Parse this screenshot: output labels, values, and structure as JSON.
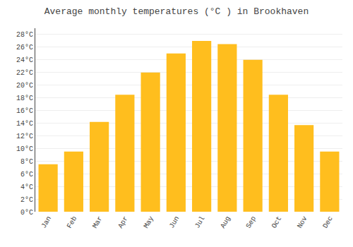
{
  "chart_data": {
    "type": "bar",
    "title": "Average monthly temperatures (°C ) in Brookhaven",
    "categories": [
      "Jan",
      "Feb",
      "Mar",
      "Apr",
      "May",
      "Jun",
      "Jul",
      "Aug",
      "Sep",
      "Oct",
      "Nov",
      "Dec"
    ],
    "values": [
      7.5,
      9.5,
      14.2,
      18.5,
      22.0,
      25.0,
      27.0,
      26.5,
      24.0,
      18.5,
      13.7,
      9.5
    ],
    "color": "#FFBE1E",
    "ylim": [
      0,
      29
    ],
    "yticks": [
      {
        "value": 0,
        "label": "0°C"
      },
      {
        "value": 2,
        "label": "2°C"
      },
      {
        "value": 4,
        "label": "4°C"
      },
      {
        "value": 6,
        "label": "6°C"
      },
      {
        "value": 8,
        "label": "8°C"
      },
      {
        "value": 10,
        "label": "10°C"
      },
      {
        "value": 12,
        "label": "12°C"
      },
      {
        "value": 14,
        "label": "14°C"
      },
      {
        "value": 16,
        "label": "16°C"
      },
      {
        "value": 18,
        "label": "18°C"
      },
      {
        "value": 20,
        "label": "20°C"
      },
      {
        "value": 22,
        "label": "22°C"
      },
      {
        "value": 24,
        "label": "24°C"
      },
      {
        "value": 26,
        "label": "26°C"
      },
      {
        "value": 28,
        "label": "28°C"
      }
    ],
    "grid": true
  }
}
